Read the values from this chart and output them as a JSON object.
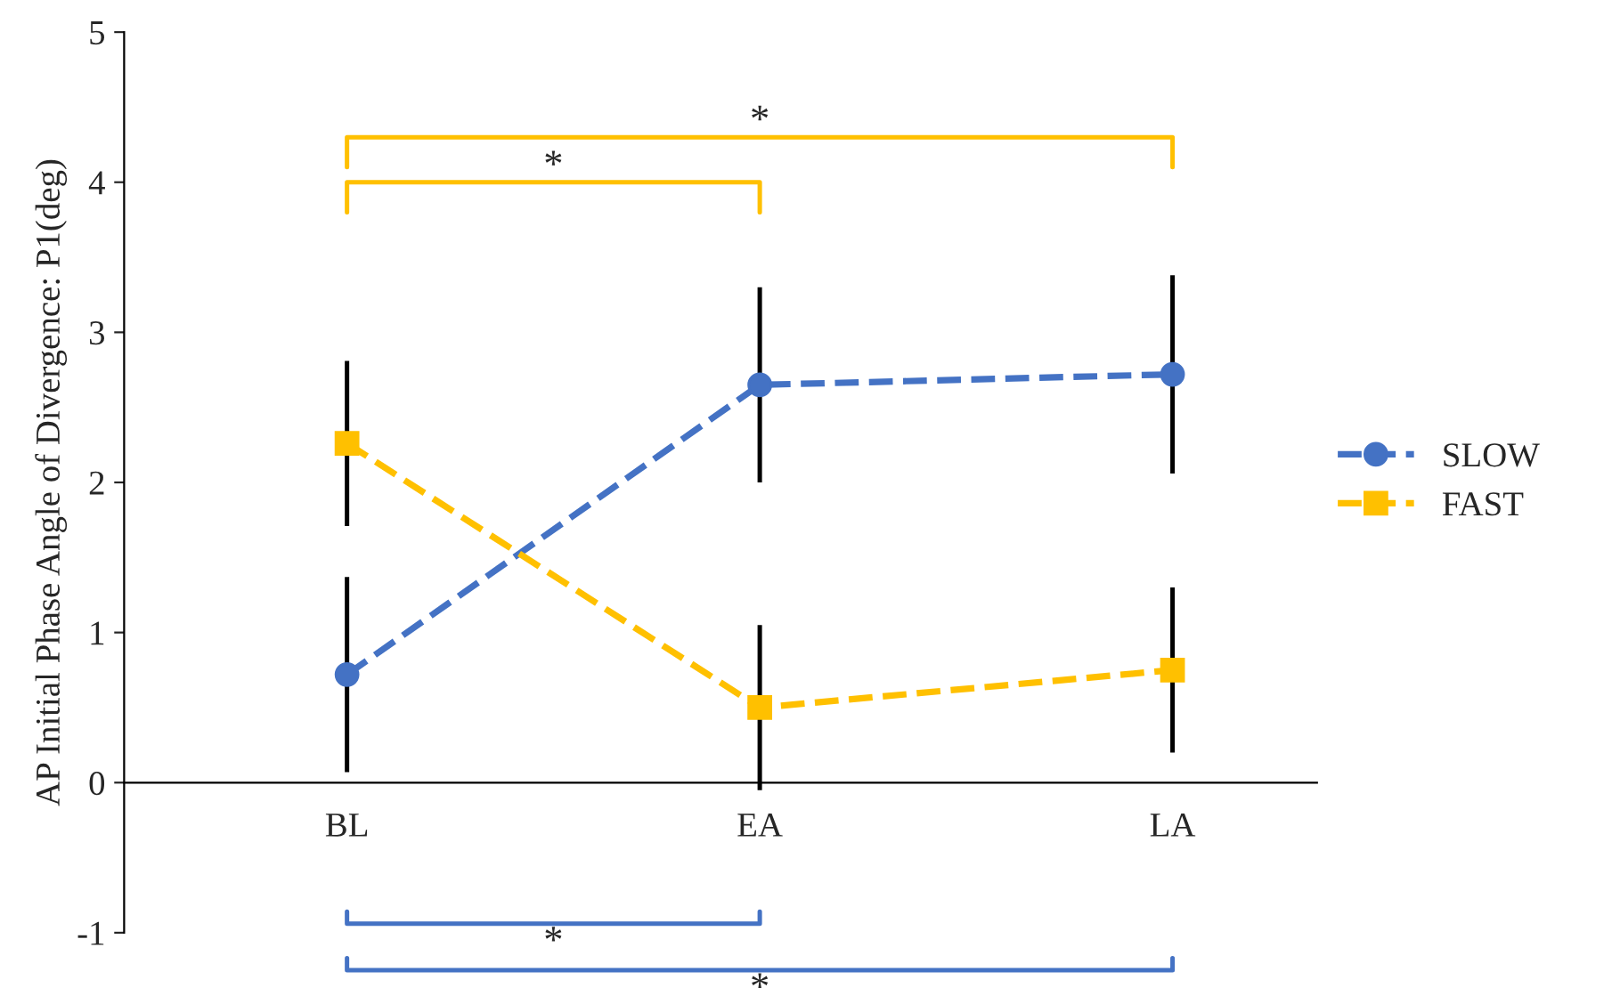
{
  "chart_data": {
    "type": "line",
    "ylabel": "AP Initial Phase Angle of Divergence: P1(deg)",
    "categories": [
      "BL",
      "EA",
      "LA"
    ],
    "series": [
      {
        "name": "SLOW",
        "color": "#4472c4",
        "marker": "circle",
        "line_style": "dashed",
        "values": [
          0.72,
          2.65,
          2.72
        ],
        "errors": [
          0.65,
          0.65,
          0.66
        ]
      },
      {
        "name": "FAST",
        "color": "#ffc000",
        "marker": "square",
        "line_style": "dashed",
        "values": [
          2.26,
          0.5,
          0.75
        ],
        "errors": [
          0.55,
          0.55,
          0.55
        ]
      }
    ],
    "ylim": [
      -1,
      5
    ],
    "yticks": [
      -1,
      0,
      1,
      2,
      3,
      4,
      5
    ],
    "grid": false,
    "legend": "right",
    "annotations": [
      "*",
      "*",
      "*",
      "*"
    ]
  }
}
